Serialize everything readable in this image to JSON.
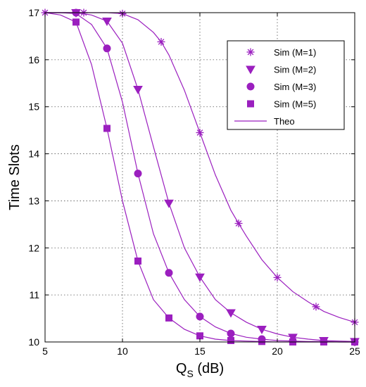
{
  "chart_data": {
    "type": "line",
    "title": "",
    "xlabel_main": "Q",
    "xlabel_sub": "S",
    "xlabel_unit": " (dB)",
    "ylabel": "Time Slots",
    "xlim": [
      5,
      25
    ],
    "ylim": [
      10,
      17
    ],
    "xticks": [
      5,
      10,
      15,
      20,
      25
    ],
    "yticks": [
      10,
      11,
      12,
      13,
      14,
      15,
      16,
      17
    ],
    "grid": true,
    "legend_position": "top-right",
    "line_color": "#9B1FBF",
    "series": [
      {
        "name": "Sim (M=1)",
        "marker": "asterisk",
        "x": [
          5,
          7.5,
          10,
          12.5,
          15,
          17.5,
          20,
          22.5,
          25
        ],
        "y": [
          17,
          17,
          16.98,
          16.38,
          14.45,
          12.52,
          11.37,
          10.75,
          10.42
        ],
        "theo_x": [
          5,
          6,
          7,
          7.5,
          8,
          9,
          10,
          11,
          12,
          12.5,
          13,
          14,
          15,
          16,
          17,
          17.5,
          18,
          19,
          20,
          21,
          22,
          22.5,
          23,
          24,
          25
        ],
        "theo_y": [
          17,
          17,
          17,
          17,
          17,
          17,
          16.98,
          16.85,
          16.58,
          16.38,
          16.1,
          15.35,
          14.45,
          13.55,
          12.8,
          12.52,
          12.25,
          11.75,
          11.37,
          11.07,
          10.85,
          10.75,
          10.65,
          10.52,
          10.42
        ]
      },
      {
        "name": "Sim (M=2)",
        "marker": "triangle-down",
        "x": [
          7,
          9,
          11,
          13,
          15,
          17,
          19,
          21,
          23,
          25
        ],
        "y": [
          17,
          16.82,
          15.37,
          12.95,
          11.38,
          10.62,
          10.27,
          10.1,
          10.03,
          10.01
        ],
        "theo_x": [
          5,
          6,
          7,
          8,
          9,
          10,
          11,
          12,
          13,
          14,
          15,
          16,
          17,
          18,
          19,
          20,
          21,
          22,
          23,
          24,
          25
        ],
        "theo_y": [
          17,
          17,
          17,
          16.95,
          16.82,
          16.35,
          15.37,
          14.15,
          12.95,
          12.0,
          11.38,
          10.9,
          10.62,
          10.42,
          10.27,
          10.17,
          10.1,
          10.06,
          10.03,
          10.02,
          10.01
        ]
      },
      {
        "name": "Sim (M=3)",
        "marker": "circle",
        "x": [
          7,
          9,
          11,
          13,
          15,
          17,
          19,
          21,
          23,
          25
        ],
        "y": [
          17,
          16.24,
          13.58,
          11.47,
          10.54,
          10.18,
          10.06,
          10.02,
          10.01,
          10.0
        ],
        "theo_x": [
          5,
          6,
          7,
          8,
          9,
          10,
          11,
          12,
          13,
          14,
          15,
          16,
          17,
          18,
          19,
          20,
          21,
          22,
          23,
          24,
          25
        ],
        "theo_y": [
          17,
          17,
          16.98,
          16.75,
          16.24,
          15.1,
          13.58,
          12.3,
          11.47,
          10.9,
          10.54,
          10.32,
          10.18,
          10.1,
          10.06,
          10.03,
          10.02,
          10.01,
          10.01,
          10.0,
          10.0
        ]
      },
      {
        "name": "Sim (M=5)",
        "marker": "square",
        "x": [
          7,
          9,
          11,
          13,
          15,
          17,
          19,
          21,
          23,
          25
        ],
        "y": [
          16.8,
          14.54,
          11.72,
          10.51,
          10.13,
          10.03,
          10.01,
          10.0,
          10.0,
          10.0
        ],
        "theo_x": [
          5,
          6,
          7,
          8,
          9,
          10,
          11,
          12,
          13,
          14,
          15,
          16,
          17,
          18,
          19,
          20,
          21,
          22,
          23,
          24,
          25
        ],
        "theo_y": [
          17,
          16.95,
          16.8,
          15.9,
          14.54,
          13.0,
          11.72,
          10.9,
          10.51,
          10.27,
          10.13,
          10.06,
          10.03,
          10.02,
          10.01,
          10.0,
          10.0,
          10.0,
          10.0,
          10.0,
          10.0
        ]
      }
    ],
    "theo_label": "Theo"
  }
}
